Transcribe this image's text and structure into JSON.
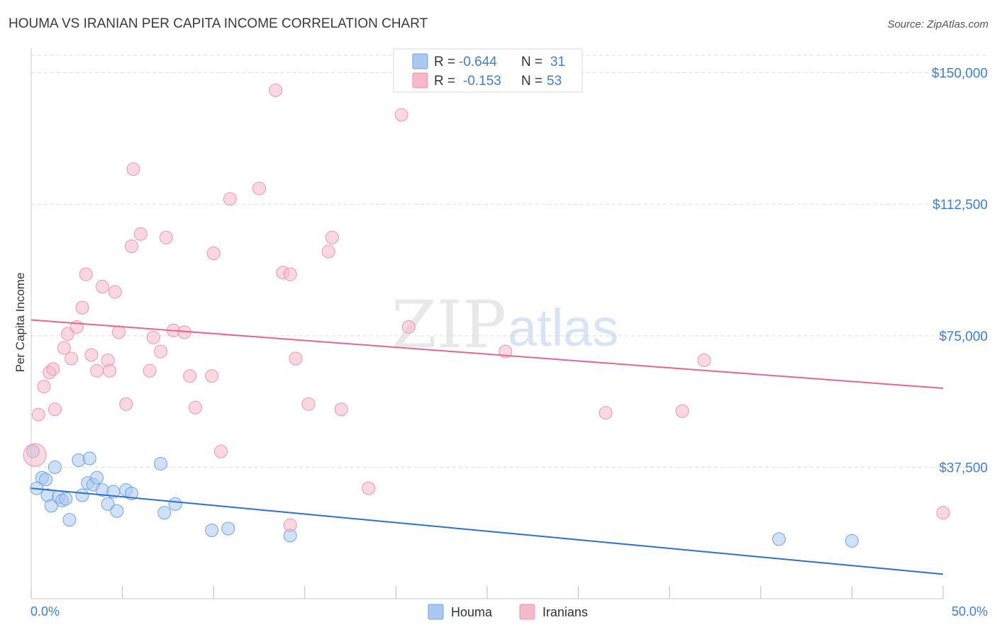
{
  "title": "HOUMA VS IRANIAN PER CAPITA INCOME CORRELATION CHART",
  "source": "Source: ZipAtlas.com",
  "watermark": {
    "zip": "ZIP",
    "atlas": "atlas"
  },
  "legend_top": {
    "rows": [
      {
        "r_label": "R =",
        "r_value": "-0.644",
        "n_label": "N =",
        "n_value": "31",
        "color": "#a9c9f0"
      },
      {
        "r_label": "R =",
        "r_value": "-0.153",
        "n_label": "N =",
        "n_value": "53",
        "color": "#f5b8ca"
      }
    ]
  },
  "legend_bottom": [
    {
      "label": "Houma",
      "color": "#a9c9f0"
    },
    {
      "label": "Iranians",
      "color": "#f5b8ca"
    }
  ],
  "chart_data": {
    "type": "scatter",
    "ylabel": "Per Capita Income",
    "xlim": [
      0,
      50
    ],
    "ylim": [
      0,
      157000
    ],
    "x_tick_labels": [
      "0.0%",
      "50.0%"
    ],
    "y_ticks": [
      {
        "value": 150000,
        "label": "$150,000"
      },
      {
        "value": 112500,
        "label": "$112,500"
      },
      {
        "value": 75000,
        "label": "$75,000"
      },
      {
        "value": 37500,
        "label": "$37,500"
      }
    ],
    "series": [
      {
        "name": "Houma",
        "color": "#a9c9f0",
        "stroke": "#6fa3e0",
        "line_color": "#2b6fd1",
        "trend": [
          [
            0,
            31500
          ],
          [
            50,
            7000
          ]
        ],
        "points": [
          [
            0.1,
            42000
          ],
          [
            0.3,
            31500
          ],
          [
            0.6,
            34500
          ],
          [
            0.8,
            34000
          ],
          [
            0.9,
            29500
          ],
          [
            1.1,
            26500
          ],
          [
            1.3,
            37500
          ],
          [
            1.5,
            29000
          ],
          [
            1.7,
            28000
          ],
          [
            1.9,
            28500
          ],
          [
            2.1,
            22500
          ],
          [
            2.6,
            39500
          ],
          [
            2.8,
            29500
          ],
          [
            3.1,
            33000
          ],
          [
            3.2,
            40000
          ],
          [
            3.4,
            32500
          ],
          [
            3.6,
            34500
          ],
          [
            3.9,
            31000
          ],
          [
            4.2,
            27000
          ],
          [
            4.7,
            25000
          ],
          [
            5.2,
            31000
          ],
          [
            5.5,
            30000
          ],
          [
            7.1,
            38500
          ],
          [
            7.3,
            24500
          ],
          [
            7.9,
            27000
          ],
          [
            9.9,
            19500
          ],
          [
            10.8,
            20000
          ],
          [
            14.2,
            18000
          ],
          [
            41.0,
            17000
          ],
          [
            45.0,
            16500
          ],
          [
            4.5,
            30500
          ]
        ]
      },
      {
        "name": "Iranians",
        "color": "#f5b8ca",
        "stroke": "#ef93ae",
        "line_color": "#e8648c",
        "trend": [
          [
            0,
            79500
          ],
          [
            50,
            60000
          ]
        ],
        "points": [
          [
            0.2,
            41000
          ],
          [
            0.4,
            52500
          ],
          [
            0.7,
            60500
          ],
          [
            1.0,
            64500
          ],
          [
            1.2,
            65500
          ],
          [
            1.3,
            54000
          ],
          [
            1.8,
            71500
          ],
          [
            2.0,
            75500
          ],
          [
            2.2,
            68500
          ],
          [
            2.5,
            77500
          ],
          [
            2.8,
            83000
          ],
          [
            3.0,
            92500
          ],
          [
            3.3,
            69500
          ],
          [
            3.6,
            65000
          ],
          [
            3.9,
            89000
          ],
          [
            4.2,
            68000
          ],
          [
            4.3,
            65000
          ],
          [
            4.6,
            87500
          ],
          [
            4.8,
            76000
          ],
          [
            5.2,
            55500
          ],
          [
            5.5,
            100500
          ],
          [
            5.6,
            122500
          ],
          [
            6.0,
            104000
          ],
          [
            6.5,
            65000
          ],
          [
            6.7,
            74500
          ],
          [
            7.1,
            70500
          ],
          [
            7.4,
            103000
          ],
          [
            7.8,
            76500
          ],
          [
            8.4,
            76000
          ],
          [
            8.7,
            63500
          ],
          [
            9.0,
            54500
          ],
          [
            9.9,
            63500
          ],
          [
            10.0,
            98500
          ],
          [
            10.4,
            42000
          ],
          [
            10.9,
            114000
          ],
          [
            12.5,
            117000
          ],
          [
            13.4,
            145000
          ],
          [
            13.8,
            93000
          ],
          [
            14.2,
            92500
          ],
          [
            14.2,
            21000
          ],
          [
            14.5,
            68500
          ],
          [
            15.2,
            55500
          ],
          [
            16.3,
            99000
          ],
          [
            16.5,
            103000
          ],
          [
            17.0,
            54000
          ],
          [
            18.5,
            31500
          ],
          [
            20.3,
            138000
          ],
          [
            20.7,
            77500
          ],
          [
            26.0,
            70500
          ],
          [
            31.5,
            53000
          ],
          [
            35.7,
            53500
          ],
          [
            36.9,
            68000
          ],
          [
            50.0,
            24500
          ]
        ]
      }
    ]
  }
}
